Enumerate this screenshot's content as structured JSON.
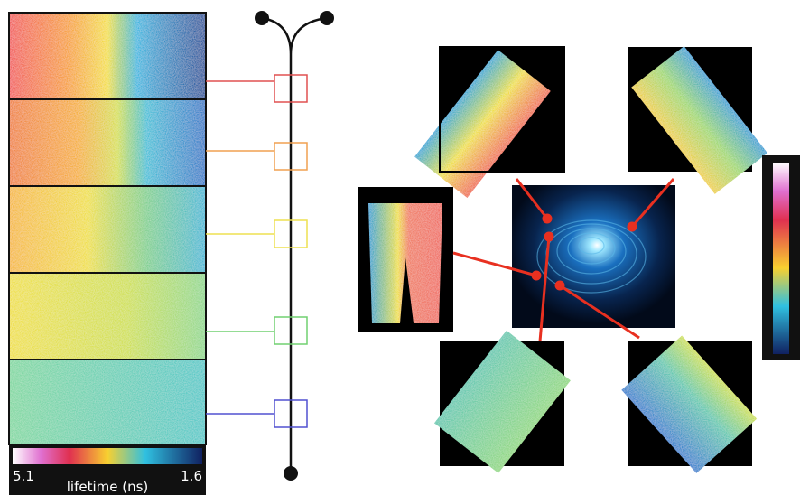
{
  "colorbar": {
    "max_label": "5.1",
    "title": "lifetime (ns)",
    "min_label": "1.6"
  }
}
